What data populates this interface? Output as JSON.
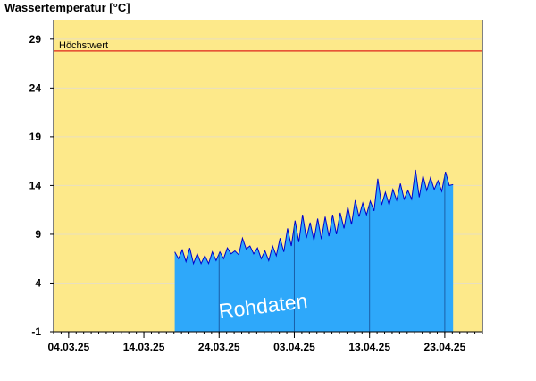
{
  "chart_data": {
    "type": "area",
    "title": "Wassertemperatur [°C]",
    "ylim": [
      -1,
      31
    ],
    "y_ticks": [
      29,
      24,
      19,
      14,
      9,
      4,
      -1
    ],
    "x_range": [
      "2025-03-02",
      "2025-04-28"
    ],
    "x_ticks": [
      {
        "date": "2025-03-04",
        "label": "04.03.25"
      },
      {
        "date": "2025-03-14",
        "label": "14.03.25"
      },
      {
        "date": "2025-03-24",
        "label": "24.03.25"
      },
      {
        "date": "2025-04-03",
        "label": "03.04.25"
      },
      {
        "date": "2025-04-13",
        "label": "13.04.25"
      },
      {
        "date": "2025-04-23",
        "label": "23.04.25"
      }
    ],
    "reference_line": {
      "label": "Höchstwert",
      "value": 27.8,
      "color": "#e0241b"
    },
    "watermark": "Rohdaten",
    "colors": {
      "background": "#fde98a",
      "area": "#2ea8fa",
      "line": "#0000cc",
      "grid": "#e8dfc0"
    },
    "grid": true,
    "series": [
      {
        "x": [
          "2025-03-18",
          "2025-03-18",
          "2025-03-19",
          "2025-03-19",
          "2025-03-20",
          "2025-03-20",
          "2025-03-21",
          "2025-03-21",
          "2025-03-22",
          "2025-03-22",
          "2025-03-23",
          "2025-03-23",
          "2025-03-24",
          "2025-03-24",
          "2025-03-25",
          "2025-03-25",
          "2025-03-26",
          "2025-03-26",
          "2025-03-27",
          "2025-03-27",
          "2025-03-28",
          "2025-03-28",
          "2025-03-29",
          "2025-03-29",
          "2025-03-30",
          "2025-03-30",
          "2025-03-31",
          "2025-03-31",
          "2025-04-01",
          "2025-04-01",
          "2025-04-02",
          "2025-04-02",
          "2025-04-03",
          "2025-04-03",
          "2025-04-04",
          "2025-04-04",
          "2025-04-05",
          "2025-04-05",
          "2025-04-06",
          "2025-04-06",
          "2025-04-07",
          "2025-04-07",
          "2025-04-08",
          "2025-04-08",
          "2025-04-09",
          "2025-04-09",
          "2025-04-10",
          "2025-04-10",
          "2025-04-11",
          "2025-04-11",
          "2025-04-12",
          "2025-04-12",
          "2025-04-13",
          "2025-04-13",
          "2025-04-14",
          "2025-04-14",
          "2025-04-15",
          "2025-04-15",
          "2025-04-16",
          "2025-04-16",
          "2025-04-17",
          "2025-04-17",
          "2025-04-18",
          "2025-04-18",
          "2025-04-19",
          "2025-04-19",
          "2025-04-20",
          "2025-04-20",
          "2025-04-21",
          "2025-04-21",
          "2025-04-22",
          "2025-04-22",
          "2025-04-23",
          "2025-04-23",
          "2025-04-24"
        ],
        "y": [
          7.2,
          6.5,
          7.4,
          6.2,
          7.6,
          6.0,
          7.0,
          6.0,
          6.8,
          6.0,
          7.2,
          6.3,
          7.2,
          6.5,
          7.6,
          7.0,
          7.3,
          6.9,
          8.6,
          7.5,
          7.8,
          7.0,
          7.6,
          6.5,
          7.3,
          6.3,
          7.8,
          6.8,
          8.6,
          7.2,
          9.6,
          7.8,
          10.4,
          8.2,
          11.0,
          8.6,
          10.2,
          8.4,
          10.6,
          8.5,
          10.8,
          8.8,
          11.0,
          9.0,
          11.2,
          9.6,
          11.8,
          10.0,
          12.5,
          10.8,
          12.2,
          11.0,
          12.4,
          11.4,
          14.7,
          12.0,
          13.3,
          12.0,
          13.6,
          12.5,
          14.2,
          12.6,
          13.5,
          12.6,
          15.6,
          12.8,
          15.0,
          13.5,
          14.8,
          13.6,
          14.5,
          13.4,
          15.4,
          14.0,
          14.1
        ]
      }
    ]
  }
}
